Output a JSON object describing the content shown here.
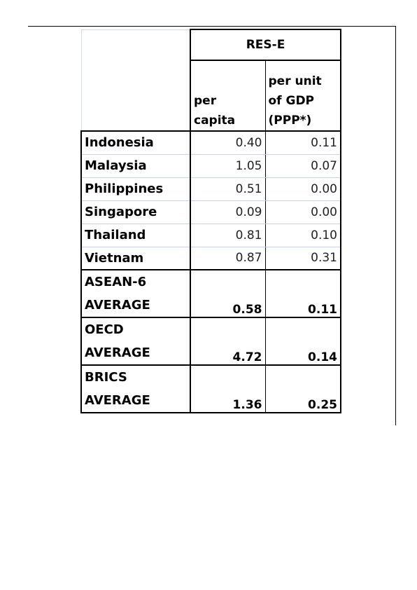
{
  "table": {
    "group_header": "RES-E",
    "col_per_capita": [
      "per",
      "capita"
    ],
    "col_per_unit_gdp": [
      "per unit",
      "of GDP",
      "(PPP*)"
    ],
    "rows": [
      {
        "country": "Indonesia",
        "per_capita": "0.40",
        "per_unit_gdp": "0.11"
      },
      {
        "country": "Malaysia",
        "per_capita": "1.05",
        "per_unit_gdp": "0.07"
      },
      {
        "country": "Philippines",
        "per_capita": "0.51",
        "per_unit_gdp": "0.00"
      },
      {
        "country": "Singapore",
        "per_capita": "0.09",
        "per_unit_gdp": "0.00"
      },
      {
        "country": "Thailand",
        "per_capita": "0.81",
        "per_unit_gdp": "0.10"
      },
      {
        "country": "Vietnam",
        "per_capita": "0.87",
        "per_unit_gdp": "0.31"
      }
    ],
    "averages": [
      {
        "label_1": "ASEAN-6",
        "label_2": "AVERAGE",
        "per_capita": "0.58",
        "per_unit_gdp": "0.11"
      },
      {
        "label_1": "OECD",
        "label_2": "AVERAGE",
        "per_capita": "4.72",
        "per_unit_gdp": "0.14"
      },
      {
        "label_1": "BRICS",
        "label_2": "AVERAGE",
        "per_capita": "1.36",
        "per_unit_gdp": "0.25"
      }
    ]
  }
}
